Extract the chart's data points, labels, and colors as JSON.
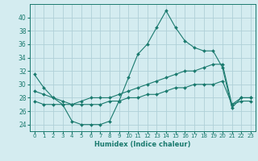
{
  "xlabel": "Humidex (Indice chaleur)",
  "background_color": "#d4ecf0",
  "grid_color": "#afd0d8",
  "line_color": "#1a7a6e",
  "x_values": [
    0,
    1,
    2,
    3,
    4,
    5,
    6,
    7,
    8,
    9,
    10,
    11,
    12,
    13,
    14,
    15,
    16,
    17,
    18,
    19,
    20,
    21,
    22,
    23
  ],
  "xtick_labels": [
    "0",
    "1",
    "2",
    "3",
    "4",
    "5",
    "6",
    "7",
    "8",
    "9",
    "10",
    "11",
    "12",
    "13",
    "14",
    "15",
    "16",
    "17",
    "18",
    "19",
    "20",
    "21",
    "22",
    "23"
  ],
  "line1": [
    31.5,
    29.5,
    28.0,
    27.0,
    24.5,
    24.0,
    24.0,
    24.0,
    24.5,
    27.5,
    31.0,
    34.5,
    36.0,
    38.5,
    41.0,
    38.5,
    36.5,
    35.5,
    35.0,
    35.0,
    32.5,
    26.5,
    28.0,
    28.0
  ],
  "line2": [
    29.0,
    28.5,
    28.0,
    27.5,
    27.0,
    27.5,
    28.0,
    28.0,
    28.0,
    28.5,
    29.0,
    29.5,
    30.0,
    30.5,
    31.0,
    31.5,
    32.0,
    32.0,
    32.5,
    33.0,
    33.0,
    27.0,
    28.0,
    28.0
  ],
  "line3": [
    27.5,
    27.0,
    27.0,
    27.0,
    27.0,
    27.0,
    27.0,
    27.0,
    27.5,
    27.5,
    28.0,
    28.0,
    28.5,
    28.5,
    29.0,
    29.5,
    29.5,
    30.0,
    30.0,
    30.0,
    30.5,
    27.0,
    27.5,
    27.5
  ],
  "ylim": [
    23.0,
    42.0
  ],
  "yticks": [
    24,
    26,
    28,
    30,
    32,
    34,
    36,
    38,
    40
  ]
}
